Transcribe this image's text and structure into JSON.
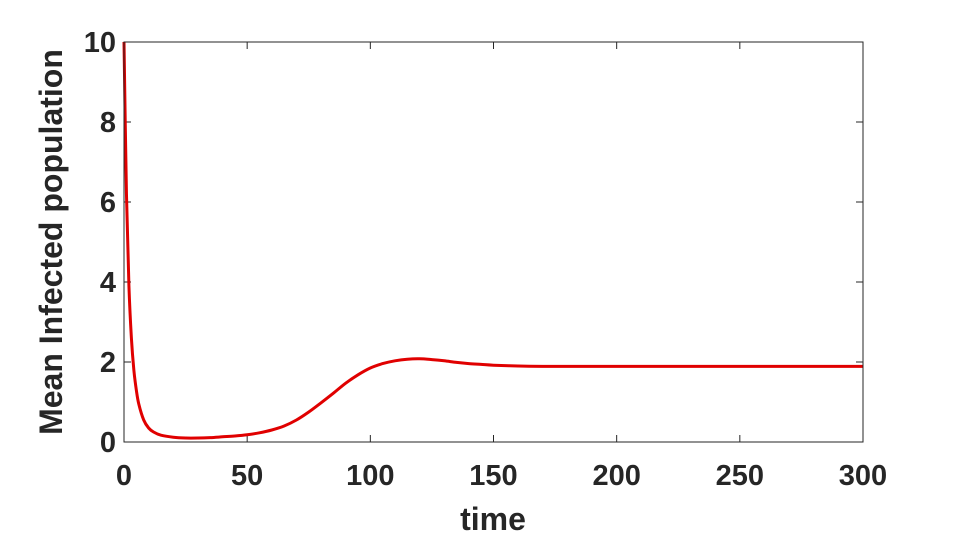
{
  "chart_data": {
    "type": "line",
    "title": "",
    "xlabel": "time",
    "ylabel": "Mean Infected population",
    "xlim": [
      0,
      300
    ],
    "ylim": [
      0,
      10
    ],
    "xticks": [
      0,
      50,
      100,
      150,
      200,
      250,
      300
    ],
    "yticks": [
      0,
      2,
      4,
      6,
      8,
      10
    ],
    "grid": false,
    "box": true,
    "series": [
      {
        "color": "#e00000",
        "x": [
          0,
          1,
          2,
          3,
          4,
          5,
          6,
          8,
          10,
          12,
          15,
          20,
          25,
          30,
          35,
          40,
          45,
          50,
          55,
          60,
          65,
          70,
          75,
          80,
          85,
          90,
          95,
          100,
          105,
          110,
          115,
          120,
          125,
          130,
          135,
          140,
          145,
          150,
          160,
          170,
          180,
          190,
          200,
          220,
          240,
          260,
          280,
          300
        ],
        "y": [
          10,
          6.2,
          3.9,
          2.6,
          1.8,
          1.3,
          0.95,
          0.55,
          0.35,
          0.25,
          0.17,
          0.12,
          0.1,
          0.1,
          0.11,
          0.13,
          0.15,
          0.18,
          0.23,
          0.3,
          0.4,
          0.55,
          0.75,
          0.98,
          1.22,
          1.47,
          1.68,
          1.85,
          1.96,
          2.03,
          2.07,
          2.08,
          2.06,
          2.03,
          1.99,
          1.96,
          1.94,
          1.92,
          1.9,
          1.89,
          1.89,
          1.89,
          1.89,
          1.89,
          1.89,
          1.89,
          1.89,
          1.89
        ]
      }
    ]
  }
}
